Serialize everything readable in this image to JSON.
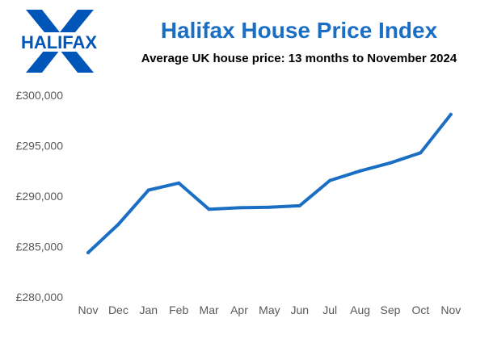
{
  "logo": {
    "text": "HALIFAX",
    "colors": {
      "blue": "#0056b8",
      "background": "#ffffff"
    }
  },
  "chart_data": {
    "type": "line",
    "title": "Halifax House Price Index",
    "subtitle": "Average UK house price: 13 months to November 2024",
    "categories": [
      "Nov",
      "Dec",
      "Jan",
      "Feb",
      "Mar",
      "Apr",
      "May",
      "Jun",
      "Jul",
      "Aug",
      "Sep",
      "Oct",
      "Nov"
    ],
    "series": [
      {
        "values": [
          284400,
          287200,
          290600,
          291300,
          288700,
          288850,
          288900,
          289050,
          291550,
          292500,
          293300,
          294300,
          298100
        ]
      }
    ],
    "ylim": [
      280000,
      300000
    ],
    "yticks": [
      280000,
      285000,
      290000,
      295000,
      300000
    ],
    "ytick_labels": [
      "£280,000",
      "£285,000",
      "£290,000",
      "£295,000",
      "£300,000"
    ],
    "xlabel": "",
    "ylabel": "",
    "grid": false,
    "legend": "none",
    "line_color": "#1a6fc4",
    "title_color": "#1a6fc4"
  }
}
